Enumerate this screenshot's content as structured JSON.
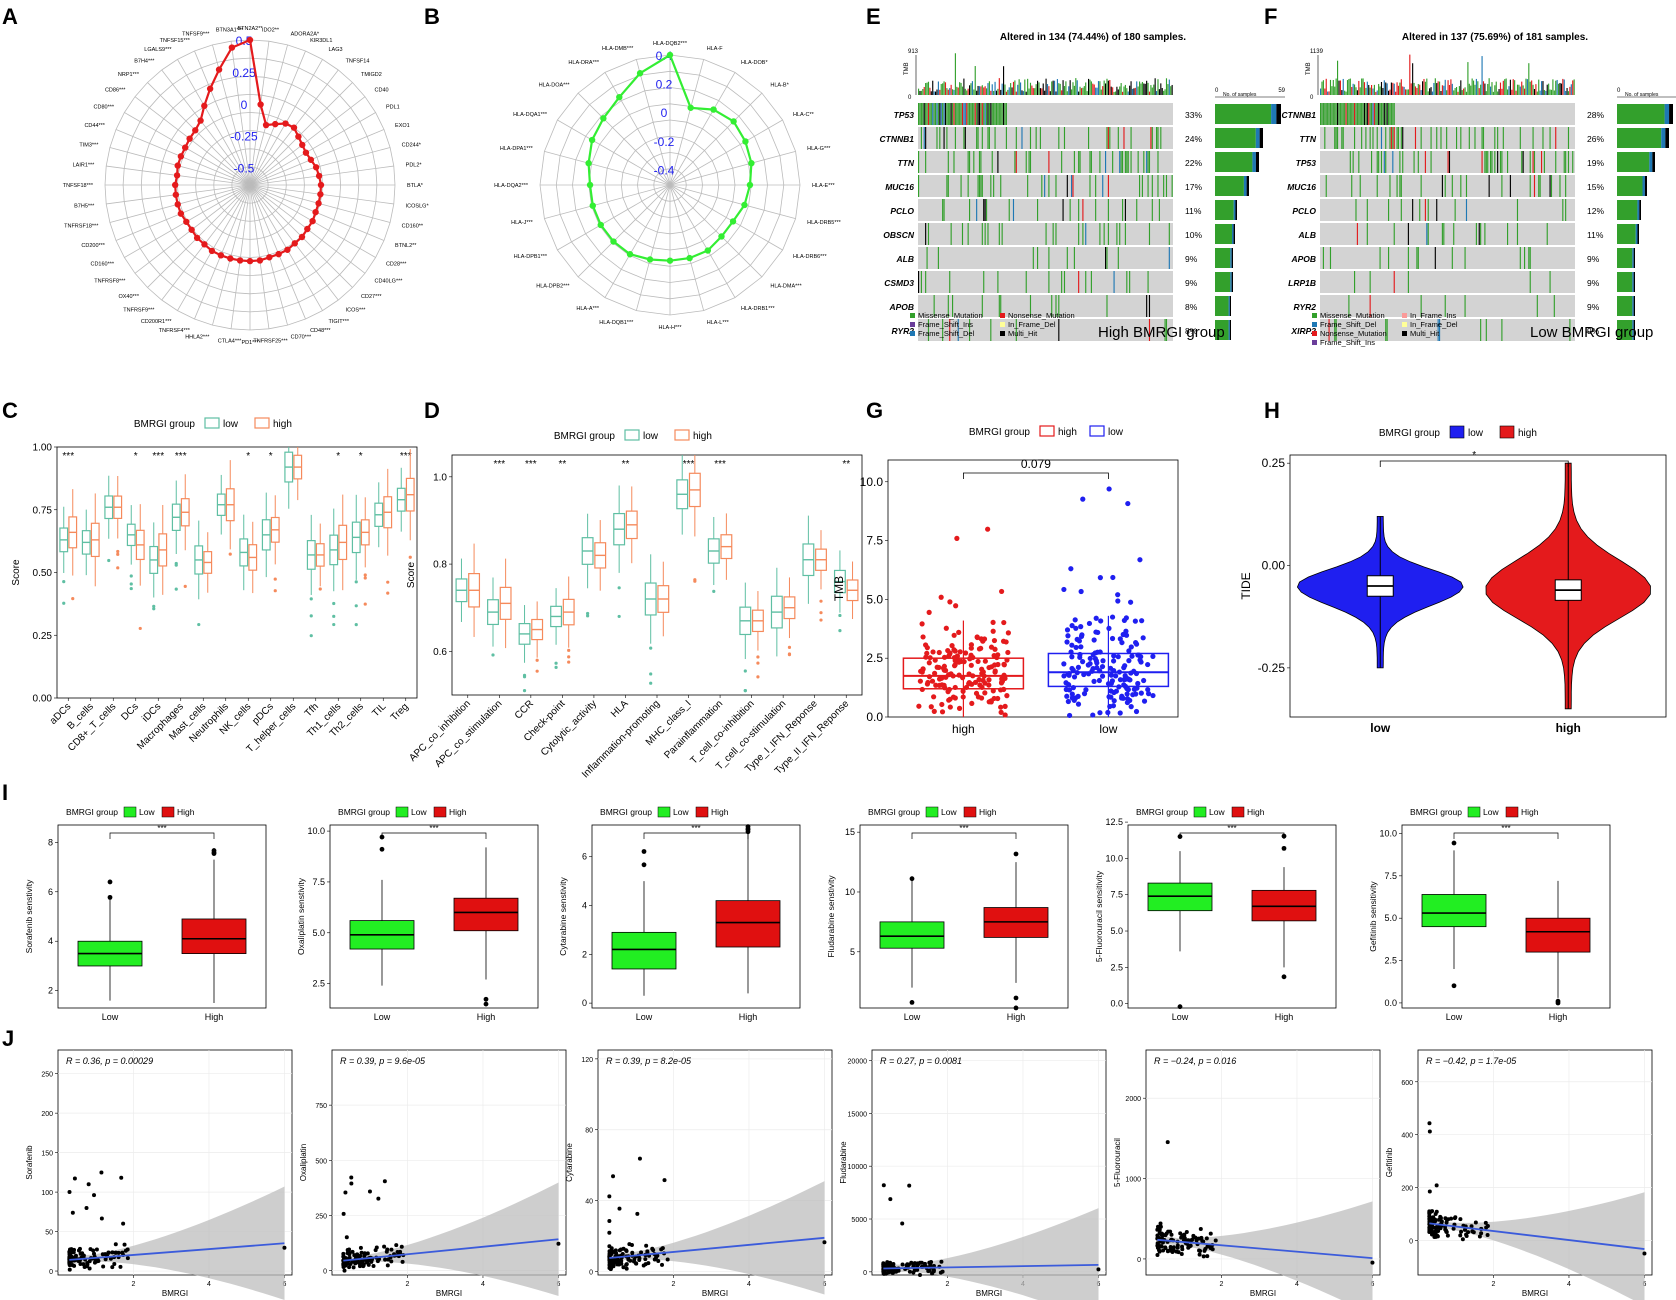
{
  "panels": {
    "A": "A",
    "B": "B",
    "C": "C",
    "D": "D",
    "E": "E",
    "F": "F",
    "G": "G",
    "H": "H",
    "I": "I",
    "J": "J"
  },
  "colors": {
    "red": "#e41a1c",
    "green": "#33ff33",
    "blue": "#1f1ff0",
    "teal": "#5fbfa3",
    "orange": "#f58a5c",
    "grey": "#d3d3d3",
    "darkgreen": "#3a9a3a"
  },
  "chart_data": [
    {
      "id": "A",
      "type": "radar",
      "labels": [
        "BTN2A2**",
        "IDO2**",
        "ADORA2A*",
        "KIR3DL1",
        "LAG3",
        "TNFSF14",
        "TMIGD2",
        "CD40",
        "PDL1",
        "EXO1",
        "CD244*",
        "PDL2*",
        "BTLA*",
        "ICOSLG*",
        "CD160**",
        "BTNL2**",
        "CD28***",
        "CD40LG***",
        "CD27***",
        "ICOS***",
        "TIGIT***",
        "CD48***",
        "CD70***",
        "TNFRSF25***",
        "PD1***",
        "CTLA4***",
        "HHLA2***",
        "TNFRSF4***",
        "CD200R1***",
        "TNFRSF9***",
        "OX40***",
        "TNFRSF8***",
        "CD160***",
        "CD200***",
        "TNFRSF18***",
        "B7H5***",
        "TNFSF18***",
        "LAIR1***",
        "TIM3***",
        "CD44***",
        "CD80***",
        "CD86***",
        "NRP1***",
        "B7H4***",
        "LGALS9***",
        "TNFSF15***",
        "TNFSF9***",
        "BTN3A1***"
      ],
      "values": [
        0.5,
        0.0,
        -0.15,
        -0.12,
        -0.08,
        -0.07,
        -0.1,
        -0.12,
        -0.13,
        -0.12,
        -0.1,
        -0.09,
        -0.08,
        -0.08,
        -0.08,
        -0.08,
        -0.07,
        -0.07,
        -0.06,
        -0.06,
        -0.05,
        -0.05,
        -0.05,
        -0.04,
        -0.04,
        -0.04,
        -0.04,
        -0.04,
        -0.04,
        -0.05,
        -0.05,
        -0.06,
        -0.06,
        -0.05,
        -0.05,
        -0.05,
        -0.05,
        -0.06,
        -0.05,
        -0.05,
        -0.05,
        -0.04,
        -0.03,
        0.0,
        0.08,
        0.18,
        0.3,
        0.45
      ],
      "ticks": [
        "0.5",
        "0.25",
        "0",
        "-0.25",
        "-0.5"
      ],
      "range": [
        -0.5,
        0.5
      ]
    },
    {
      "id": "B",
      "type": "radar",
      "labels": [
        "HLA-DQB2***",
        "HLA-F",
        "HLA-DOB*",
        "HLA-B*",
        "HLA-C**",
        "HLA-G***",
        "HLA-E***",
        "HLA-DRB5***",
        "HLA-DRB6***",
        "HLA-DMA***",
        "HLA-DRB1***",
        "HLA-L***",
        "HLA-H***",
        "HLA-DQB1***",
        "HLA-A***",
        "HLA-DPB2***",
        "HLA-DPB1***",
        "HLA-J***",
        "HLA-DQA2***",
        "HLA-DPA1***",
        "HLA-DQA1***",
        "HLA-DOA***",
        "HLA-DRA***",
        "HLA-DMB***"
      ],
      "values": [
        0.4,
        0.05,
        0.1,
        0.12,
        0.1,
        0.08,
        0.05,
        0.03,
        0.0,
        0.0,
        0.02,
        0.02,
        0.02,
        0.03,
        0.05,
        0.05,
        0.05,
        0.05,
        0.05,
        0.08,
        0.12,
        0.15,
        0.2,
        0.3
      ],
      "ticks": [
        "0.4",
        "0.2",
        "0",
        "-0.2",
        "-0.4"
      ],
      "range": [
        -0.4,
        0.4
      ]
    },
    {
      "id": "C",
      "type": "boxplot",
      "title": "BMRGI group",
      "legend": [
        "low",
        "high"
      ],
      "ylabel": "Score",
      "categories": [
        "aDCs",
        "B_cells",
        "CD8+_T_cells",
        "DCs",
        "iDCs",
        "Macrophages",
        "Mast_cells",
        "Neutrophils",
        "NK_cells",
        "pDCs",
        "T_helper_cells",
        "Tfh",
        "Th1_cells",
        "Th2_cells",
        "TIL",
        "Treg"
      ],
      "sig": [
        "***",
        "",
        "",
        "*",
        "***",
        "***",
        "",
        "",
        "*",
        "*",
        "",
        "",
        "*",
        "*",
        "",
        "***"
      ],
      "low_median": [
        0.63,
        0.62,
        0.76,
        0.65,
        0.55,
        0.72,
        0.55,
        0.77,
        0.58,
        0.65,
        0.92,
        0.57,
        0.59,
        0.64,
        0.73,
        0.79
      ],
      "high_median": [
        0.66,
        0.63,
        0.76,
        0.61,
        0.59,
        0.74,
        0.54,
        0.77,
        0.56,
        0.67,
        0.92,
        0.57,
        0.62,
        0.66,
        0.74,
        0.81
      ],
      "ylim": [
        0,
        1
      ],
      "yticks": [
        "0.00",
        "0.25",
        "0.50",
        "0.75",
        "1.00"
      ]
    },
    {
      "id": "D",
      "type": "boxplot",
      "title": "BMRGI group",
      "legend": [
        "low",
        "high"
      ],
      "ylabel": "Score",
      "categories": [
        "APC_co_inhibition",
        "APC_co_stimulation",
        "CCR",
        "Check-point",
        "Cytolytic_activity",
        "HLA",
        "Inflammation-promoting",
        "MHC_class_I",
        "Parainflammation",
        "T_cell_co-inhibition",
        "T_cell_co-stimulation",
        "Type_I_IFN_Reponse",
        "Type_II_IFN_Reponse"
      ],
      "sig": [
        "",
        "***",
        "***",
        "**",
        "",
        "**",
        "",
        "***",
        "***",
        "",
        "",
        "",
        "**"
      ],
      "low_median": [
        0.74,
        0.69,
        0.64,
        0.68,
        0.83,
        0.88,
        0.72,
        0.96,
        0.83,
        0.67,
        0.69,
        0.81,
        0.76
      ],
      "high_median": [
        0.74,
        0.71,
        0.65,
        0.69,
        0.82,
        0.89,
        0.72,
        0.97,
        0.84,
        0.67,
        0.7,
        0.81,
        0.74
      ],
      "ylim": [
        0.5,
        1.05
      ],
      "yticks": [
        "0.6",
        "0.8",
        "1.0"
      ]
    },
    {
      "id": "E",
      "type": "oncoplot",
      "title": "Altered in 134 (74.44%) of 180 samples.",
      "group": "High BMRGI group",
      "genes": [
        "TP53",
        "CTNNB1",
        "TTN",
        "MUC16",
        "PCLO",
        "OBSCN",
        "ALB",
        "CSMD3",
        "APOB",
        "RYR2"
      ],
      "pct": [
        "33%",
        "24%",
        "22%",
        "17%",
        "11%",
        "10%",
        "9%",
        "9%",
        "8%",
        "8%"
      ],
      "ymax": "913",
      "xmax": "59",
      "tmb_label": "TMB",
      "samples_label": "No. of samples",
      "legend": [
        "Missense_Mutation",
        "Frame_Shift_Ins",
        "Frame_Shift_Del",
        "Nonsense_Mutation",
        "In_Frame_Del",
        "Multi_Hit"
      ]
    },
    {
      "id": "F",
      "type": "oncoplot",
      "title": "Altered in 137 (75.69%) of 181 samples.",
      "group": "Low BMRGI group",
      "genes": [
        "CTNNB1",
        "TTN",
        "TP53",
        "MUC16",
        "PCLO",
        "ALB",
        "APOB",
        "LRP1B",
        "RYR2",
        "XIRP2"
      ],
      "pct": [
        "28%",
        "26%",
        "19%",
        "15%",
        "12%",
        "11%",
        "9%",
        "9%",
        "9%",
        "9%"
      ],
      "ymax": "1139",
      "xmax": "50",
      "tmb_label": "TMB",
      "samples_label": "No. of samples",
      "legend": [
        "Missense_Mutation",
        "Frame_Shift_Del",
        "Nonsense_Mutation",
        "Frame_Shift_Ins",
        "In_Frame_Ins",
        "In_Frame_Del",
        "Multi_Hit"
      ]
    },
    {
      "id": "G",
      "type": "box+scatter",
      "title": "BMRGI group",
      "legend": [
        "high",
        "low"
      ],
      "ylabel": "TMB",
      "categories": [
        "high",
        "low"
      ],
      "pvalue": "0.079",
      "q1": [
        1.2,
        1.3
      ],
      "median": [
        1.75,
        1.9
      ],
      "q3": [
        2.5,
        2.7
      ],
      "ylim": [
        0,
        10.5
      ],
      "yticks": [
        "0.0",
        "2.5",
        "5.0",
        "7.5",
        "10.0"
      ]
    },
    {
      "id": "H",
      "type": "violin",
      "title": "BMRGI group",
      "legend": [
        "low",
        "high"
      ],
      "ylabel": "TIDE",
      "categories": [
        "low",
        "high"
      ],
      "sig": "*",
      "median": [
        -0.05,
        -0.06
      ],
      "ylim": [
        -0.37,
        0.27
      ],
      "yticks": [
        "0.25",
        "0.00",
        "-0.25"
      ]
    },
    {
      "id": "I1",
      "type": "boxplot",
      "drug": "Sorafenib",
      "ylabel": "Sorafenib senstivity",
      "title": "BMRGI group",
      "legend": [
        "Low",
        "High"
      ],
      "categories": [
        "Low",
        "High"
      ],
      "sig": "***",
      "q1": [
        3.0,
        3.5
      ],
      "median": [
        3.5,
        4.1
      ],
      "q3": [
        4.0,
        4.9
      ],
      "whisker": [
        [
          1.6,
          5.7
        ],
        [
          1.5,
          7.3
        ]
      ],
      "ylim": [
        1.3,
        8.7
      ],
      "yticks": [
        "2",
        "4",
        "6",
        "8"
      ]
    },
    {
      "id": "I2",
      "type": "boxplot",
      "drug": "Oxaliplatin",
      "ylabel": "Oxaliplatin senstivity",
      "title": "BMRGI group",
      "legend": [
        "Low",
        "High"
      ],
      "categories": [
        "Low",
        "High"
      ],
      "sig": "***",
      "q1": [
        4.2,
        5.1
      ],
      "median": [
        4.9,
        6.0
      ],
      "q3": [
        5.6,
        6.7
      ],
      "whisker": [
        [
          2.4,
          7.6
        ],
        [
          2.7,
          9.2
        ]
      ],
      "ylim": [
        1.3,
        10.3
      ],
      "yticks": [
        "2.5",
        "5.0",
        "7.5",
        "10.0"
      ]
    },
    {
      "id": "I3",
      "type": "boxplot",
      "drug": "Cytarabine",
      "ylabel": "Cytarabine senstivity",
      "title": "BMRGI group",
      "legend": [
        "Low",
        "High"
      ],
      "categories": [
        "Low",
        "High"
      ],
      "sig": "***",
      "q1": [
        1.4,
        2.3
      ],
      "median": [
        2.2,
        3.3
      ],
      "q3": [
        2.9,
        4.2
      ],
      "whisker": [
        [
          0.3,
          5.0
        ],
        [
          0.4,
          7.0
        ]
      ],
      "ylim": [
        -0.2,
        7.3
      ],
      "yticks": [
        "0",
        "2",
        "4",
        "6"
      ]
    },
    {
      "id": "I4",
      "type": "boxplot",
      "drug": "Fludarabine",
      "ylabel": "Fludarabine senstivity",
      "title": "BMRGI group",
      "legend": [
        "Low",
        "High"
      ],
      "categories": [
        "Low",
        "High"
      ],
      "sig": "***",
      "q1": [
        5.3,
        6.2
      ],
      "median": [
        6.3,
        7.5
      ],
      "q3": [
        7.5,
        8.7
      ],
      "whisker": [
        [
          2.0,
          11.0
        ],
        [
          2.4,
          12.5
        ]
      ],
      "ylim": [
        0.3,
        15.6
      ],
      "yticks": [
        "5",
        "10",
        "15"
      ]
    },
    {
      "id": "I5",
      "type": "boxplot",
      "drug": "5-Fluorouracil",
      "ylabel": "5-Fluorouracil sensitivity",
      "title": "BMRGI group",
      "legend": [
        "Low",
        "High"
      ],
      "categories": [
        "Low",
        "High"
      ],
      "sig": "***",
      "q1": [
        6.4,
        5.7
      ],
      "median": [
        7.4,
        6.7
      ],
      "q3": [
        8.3,
        7.8
      ],
      "whisker": [
        [
          3.6,
          10.5
        ],
        [
          2.5,
          9.4
        ]
      ],
      "ylim": [
        -0.3,
        12.3
      ],
      "yticks": [
        "0.0",
        "2.5",
        "5.0",
        "7.5",
        "10.0",
        "12.5"
      ]
    },
    {
      "id": "I6",
      "type": "boxplot",
      "drug": "Gefitinib",
      "ylabel": "Gefitinib sensitivity",
      "title": "BMRGI group",
      "legend": [
        "Low",
        "High"
      ],
      "categories": [
        "Low",
        "High"
      ],
      "sig": "***",
      "q1": [
        4.5,
        3.0
      ],
      "median": [
        5.3,
        4.2
      ],
      "q3": [
        6.4,
        5.0
      ],
      "whisker": [
        [
          2.0,
          9.0
        ],
        [
          0.3,
          7.2
        ]
      ],
      "ylim": [
        -0.3,
        10.5
      ],
      "yticks": [
        "0.0",
        "2.5",
        "5.0",
        "7.5",
        "10.0"
      ]
    },
    {
      "id": "J1",
      "type": "scatter",
      "xlabel": "BMRGI",
      "ylabel": "Sorafenib",
      "stat": "R = 0.36, p = 0.00029",
      "intercept": 13,
      "slope": 3.7,
      "xlim": [
        0,
        6.2
      ],
      "ylim": [
        -5,
        280
      ],
      "xticks": [
        "2",
        "4",
        "6"
      ],
      "yticks": [
        "0",
        "50",
        "100",
        "150",
        "200",
        "250"
      ]
    },
    {
      "id": "J2",
      "type": "scatter",
      "xlabel": "BMRGI",
      "ylabel": "Oxaliplatin",
      "stat": "R = 0.39, p = 9.6e-05",
      "intercept": 40,
      "slope": 17,
      "xlim": [
        0,
        6.2
      ],
      "ylim": [
        -20,
        1000
      ],
      "xticks": [
        "2",
        "4",
        "6"
      ],
      "yticks": [
        "0",
        "250",
        "500",
        "750"
      ]
    },
    {
      "id": "J3",
      "type": "scatter",
      "xlabel": "BMRGI",
      "ylabel": "Cytarabine",
      "stat": "R = 0.39, p = 8.2e-05",
      "intercept": 7,
      "slope": 2.0,
      "xlim": [
        0,
        6.2
      ],
      "ylim": [
        -2,
        125
      ],
      "xticks": [
        "2",
        "4",
        "6"
      ],
      "yticks": [
        "0",
        "40",
        "80",
        "120"
      ]
    },
    {
      "id": "J4",
      "type": "scatter",
      "xlabel": "BMRGI",
      "ylabel": "Fludarabine",
      "stat": "R = 0.27, p = 0.0081",
      "intercept": 300,
      "slope": 60,
      "xlim": [
        0,
        6.2
      ],
      "ylim": [
        -300,
        21000
      ],
      "xticks": [
        "2",
        "4",
        "6"
      ],
      "yticks": [
        "0",
        "5000",
        "10000",
        "15000",
        "20000"
      ]
    },
    {
      "id": "J5",
      "type": "scatter",
      "xlabel": "BMRGI",
      "ylabel": "5-Fluorouracil",
      "stat": "R = −0.24, p = 0.016",
      "intercept": 250,
      "slope": -40,
      "xlim": [
        0,
        6.2
      ],
      "ylim": [
        -200,
        2600
      ],
      "xticks": [
        "2",
        "4",
        "6"
      ],
      "yticks": [
        "0",
        "1000",
        "2000"
      ]
    },
    {
      "id": "J6",
      "type": "scatter",
      "xlabel": "BMRGI",
      "ylabel": "Gefitinib",
      "stat": "R = −0.42, p = 1.7e-05",
      "intercept": 70,
      "slope": -17,
      "xlim": [
        0,
        6.2
      ],
      "ylim": [
        -130,
        720
      ],
      "xticks": [
        "2",
        "4",
        "6"
      ],
      "yticks": [
        "0",
        "200",
        "400",
        "600"
      ]
    }
  ]
}
